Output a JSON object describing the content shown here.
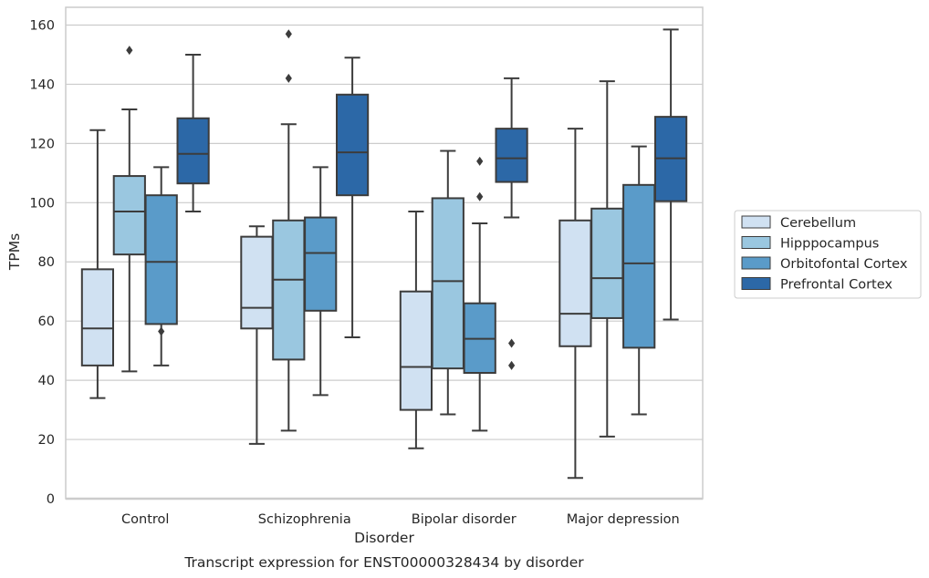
{
  "chart_data": {
    "type": "boxplot",
    "xlabel": "Disorder",
    "ylabel": "TPMs",
    "caption": "Transcript expression for ENST00000328434 by disorder",
    "ylim": [
      0,
      166
    ],
    "yticks": [
      0,
      20,
      40,
      60,
      80,
      100,
      120,
      140,
      160
    ],
    "grid": "horizontal",
    "legend_position": "right",
    "categories": [
      "Control",
      "Schizophrenia",
      "Bipolar disorder",
      "Major depression"
    ],
    "series": [
      {
        "name": "Cerebellum",
        "color": "#d0e1f2",
        "boxes": [
          {
            "whisker_low": 34,
            "q1": 45,
            "median": 57.5,
            "q3": 77.5,
            "whisker_high": 124.5,
            "fliers": []
          },
          {
            "whisker_low": 18.5,
            "q1": 57.5,
            "median": 64.5,
            "q3": 88.5,
            "whisker_high": 92,
            "fliers": []
          },
          {
            "whisker_low": 17,
            "q1": 30,
            "median": 44.5,
            "q3": 70,
            "whisker_high": 97,
            "fliers": []
          },
          {
            "whisker_low": 7,
            "q1": 51.5,
            "median": 62.5,
            "q3": 94,
            "whisker_high": 125,
            "fliers": []
          }
        ]
      },
      {
        "name": "Hipppocampus",
        "color": "#9ac7e0",
        "boxes": [
          {
            "whisker_low": 43,
            "q1": 82.5,
            "median": 97,
            "q3": 109,
            "whisker_high": 131.5,
            "fliers": [
              151.5
            ]
          },
          {
            "whisker_low": 23,
            "q1": 47,
            "median": 74,
            "q3": 94,
            "whisker_high": 126.5,
            "fliers": [
              142,
              157
            ]
          },
          {
            "whisker_low": 28.5,
            "q1": 44,
            "median": 73.5,
            "q3": 101.5,
            "whisker_high": 117.5,
            "fliers": []
          },
          {
            "whisker_low": 21,
            "q1": 61,
            "median": 74.5,
            "q3": 98,
            "whisker_high": 141,
            "fliers": []
          }
        ]
      },
      {
        "name": "Orbitofontal Cortex",
        "color": "#5a9bc9",
        "boxes": [
          {
            "whisker_low": 45,
            "q1": 59,
            "median": 80,
            "q3": 102.5,
            "whisker_high": 112,
            "fliers": [
              56.5
            ]
          },
          {
            "whisker_low": 35,
            "q1": 63.5,
            "median": 83,
            "q3": 95,
            "whisker_high": 112,
            "fliers": []
          },
          {
            "whisker_low": 23,
            "q1": 42.5,
            "median": 54,
            "q3": 66,
            "whisker_high": 93,
            "fliers": [
              102,
              114
            ]
          },
          {
            "whisker_low": 28.5,
            "q1": 51,
            "median": 79.5,
            "q3": 106,
            "whisker_high": 119,
            "fliers": []
          }
        ]
      },
      {
        "name": "Prefrontal Cortex",
        "color": "#2c68a7",
        "boxes": [
          {
            "whisker_low": 97,
            "q1": 106.5,
            "median": 116.5,
            "q3": 128.5,
            "whisker_high": 150,
            "fliers": []
          },
          {
            "whisker_low": 54.5,
            "q1": 102.5,
            "median": 117,
            "q3": 136.5,
            "whisker_high": 149,
            "fliers": []
          },
          {
            "whisker_low": 95,
            "q1": 107,
            "median": 115,
            "q3": 125,
            "whisker_high": 142,
            "fliers": [
              45,
              52.5
            ]
          },
          {
            "whisker_low": 60.5,
            "q1": 100.5,
            "median": 115,
            "q3": 129,
            "whisker_high": 158.5,
            "fliers": []
          }
        ]
      }
    ]
  }
}
